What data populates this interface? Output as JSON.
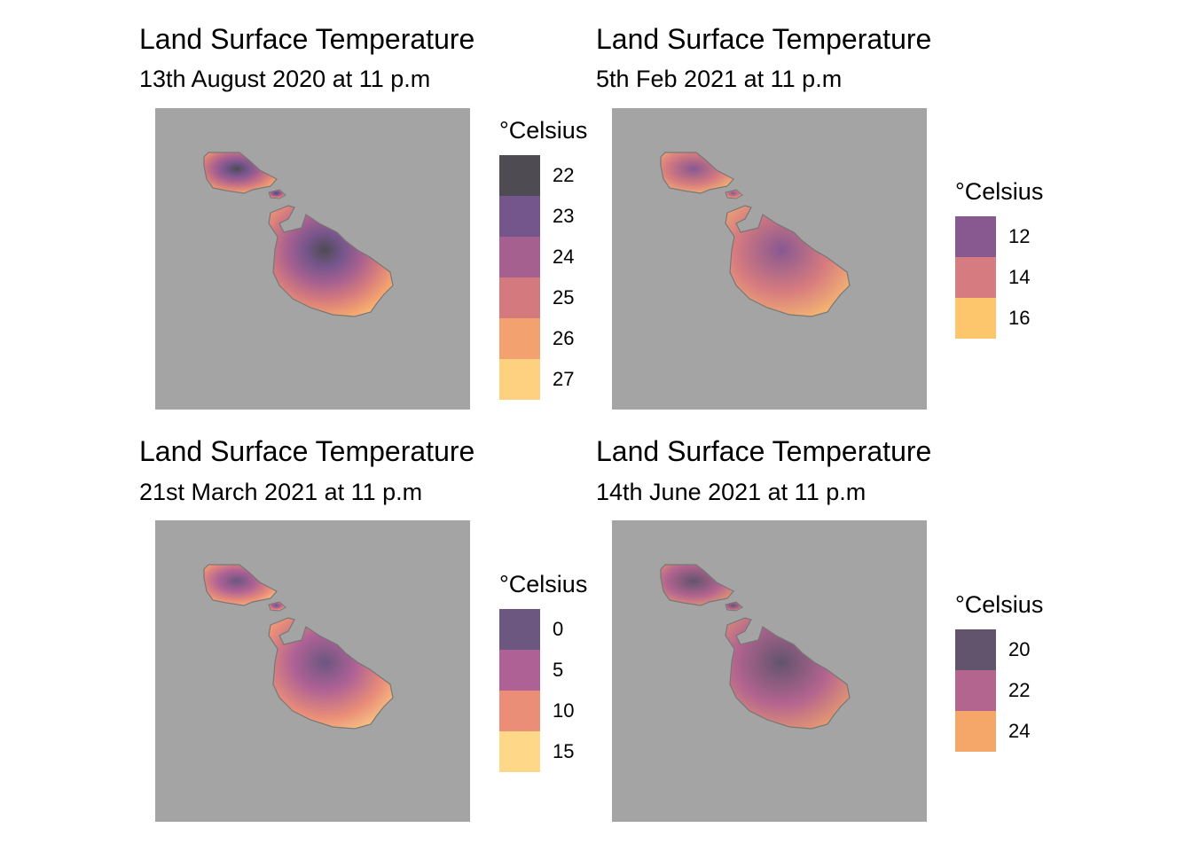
{
  "panels": [
    {
      "title": "Land Surface Temperature",
      "subtitle": "13th August 2020 at 11 p.m",
      "legend": {
        "title": "°Celsius",
        "keys": [
          {
            "label": "22",
            "color": "#4e4b53"
          },
          {
            "label": "23",
            "color": "#75568c"
          },
          {
            "label": "24",
            "color": "#a66090"
          },
          {
            "label": "25",
            "color": "#d47a7e"
          },
          {
            "label": "26",
            "color": "#f2a16f"
          },
          {
            "label": "27",
            "color": "#fed180"
          }
        ]
      }
    },
    {
      "title": "Land Surface Temperature",
      "subtitle": "5th Feb 2021 at 11 p.m",
      "legend": {
        "title": "°Celsius",
        "keys": [
          {
            "label": "12",
            "color": "#885891"
          },
          {
            "label": "14",
            "color": "#d67b7f"
          },
          {
            "label": "16",
            "color": "#fdc66d"
          }
        ]
      }
    },
    {
      "title": "Land Surface Temperature",
      "subtitle": "21st March 2021 at 11 p.m",
      "legend": {
        "title": "°Celsius",
        "keys": [
          {
            "label": "0",
            "color": "#6b5780"
          },
          {
            "label": "5",
            "color": "#ae6195"
          },
          {
            "label": "10",
            "color": "#ea8e78"
          },
          {
            "label": "15",
            "color": "#fed888"
          }
        ]
      }
    },
    {
      "title": "Land Surface Temperature",
      "subtitle": "14th June 2021 at 11 p.m",
      "legend": {
        "title": "°Celsius",
        "keys": [
          {
            "label": "20",
            "color": "#62546d"
          },
          {
            "label": "22",
            "color": "#b3648f"
          },
          {
            "label": "24",
            "color": "#f4a768"
          }
        ]
      }
    }
  ],
  "map_background": "#a4a4a4"
}
